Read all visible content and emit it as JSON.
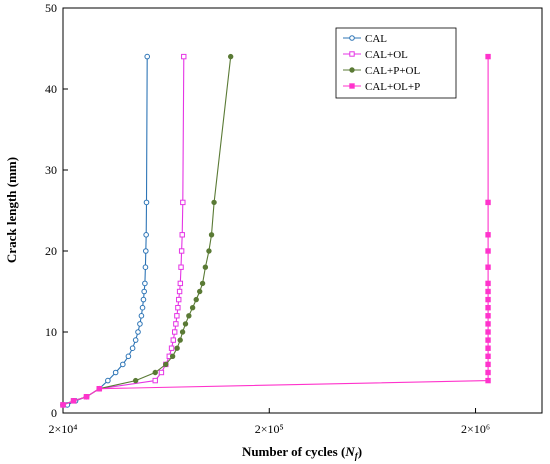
{
  "chart_data": {
    "type": "line",
    "title": "",
    "xlabel": "Number of cycles (N_f)",
    "xlabel_main": "Number of cycles (",
    "xlabel_var": "N",
    "xlabel_sub": "f",
    "xlabel_close": ")",
    "ylabel": "Crack length (mm)",
    "x_scale": "log",
    "xlim": [
      20000,
      4200000
    ],
    "ylim": [
      0,
      50
    ],
    "x_ticks": [
      {
        "value": 20000,
        "label": "2×10⁴"
      },
      {
        "value": 200000,
        "label": "2×10⁵"
      },
      {
        "value": 2000000,
        "label": "2×10⁶"
      }
    ],
    "y_ticks": [
      0,
      10,
      20,
      30,
      40,
      50
    ],
    "grid": false,
    "legend_position": "top-right",
    "series": [
      {
        "name": "CAL",
        "color": "#2e75b6",
        "marker": "open-circle",
        "points": [
          [
            20000,
            1
          ],
          [
            21000,
            1
          ],
          [
            23000,
            1.5
          ],
          [
            26000,
            2
          ],
          [
            30000,
            3
          ],
          [
            33000,
            4
          ],
          [
            36000,
            5
          ],
          [
            39000,
            6
          ],
          [
            41500,
            7
          ],
          [
            43500,
            8
          ],
          [
            45000,
            9
          ],
          [
            46200,
            10
          ],
          [
            47200,
            11
          ],
          [
            48000,
            12
          ],
          [
            48600,
            13
          ],
          [
            49100,
            14
          ],
          [
            49500,
            15
          ],
          [
            49900,
            16
          ],
          [
            50200,
            18
          ],
          [
            50400,
            20
          ],
          [
            50600,
            22
          ],
          [
            50800,
            26
          ],
          [
            51200,
            44
          ]
        ]
      },
      {
        "name": "CAL+OL",
        "color": "#e535e5",
        "marker": "open-square",
        "points": [
          [
            20000,
            1
          ],
          [
            22500,
            1.5
          ],
          [
            26000,
            2
          ],
          [
            30000,
            3
          ],
          [
            56000,
            4
          ],
          [
            60000,
            5
          ],
          [
            63000,
            6
          ],
          [
            65500,
            7
          ],
          [
            67200,
            8
          ],
          [
            68500,
            9
          ],
          [
            69600,
            10
          ],
          [
            70500,
            11
          ],
          [
            71300,
            12
          ],
          [
            72100,
            13
          ],
          [
            72800,
            14
          ],
          [
            73500,
            15
          ],
          [
            74100,
            16
          ],
          [
            74700,
            18
          ],
          [
            75200,
            20
          ],
          [
            75700,
            22
          ],
          [
            76200,
            26
          ],
          [
            77000,
            44
          ]
        ]
      },
      {
        "name": "CAL+P+OL",
        "color": "#5a7a35",
        "marker": "filled-circle",
        "points": [
          [
            20000,
            1
          ],
          [
            22500,
            1.5
          ],
          [
            26000,
            2
          ],
          [
            30000,
            3
          ],
          [
            45000,
            4
          ],
          [
            56000,
            5
          ],
          [
            63000,
            6
          ],
          [
            68000,
            7
          ],
          [
            71500,
            8
          ],
          [
            74000,
            9
          ],
          [
            76000,
            10
          ],
          [
            78500,
            11
          ],
          [
            81500,
            12
          ],
          [
            85000,
            13
          ],
          [
            88500,
            14
          ],
          [
            92000,
            15
          ],
          [
            95000,
            16
          ],
          [
            98000,
            18
          ],
          [
            102000,
            20
          ],
          [
            105000,
            22
          ],
          [
            108000,
            26
          ],
          [
            130000,
            44
          ]
        ]
      },
      {
        "name": "CAL+OL+P",
        "color": "#ff33cc",
        "marker": "filled-square",
        "points": [
          [
            20000,
            1
          ],
          [
            22500,
            1.5
          ],
          [
            26000,
            2
          ],
          [
            30000,
            3
          ],
          [
            2300000,
            4
          ],
          [
            2300000,
            5
          ],
          [
            2300000,
            6
          ],
          [
            2300000,
            7
          ],
          [
            2300000,
            8
          ],
          [
            2300000,
            9
          ],
          [
            2300000,
            10
          ],
          [
            2300000,
            11
          ],
          [
            2300000,
            12
          ],
          [
            2300000,
            13
          ],
          [
            2300000,
            14
          ],
          [
            2300000,
            15
          ],
          [
            2300000,
            16
          ],
          [
            2300000,
            18
          ],
          [
            2300000,
            20
          ],
          [
            2300000,
            22
          ],
          [
            2300000,
            26
          ],
          [
            2300000,
            44
          ]
        ]
      }
    ]
  }
}
